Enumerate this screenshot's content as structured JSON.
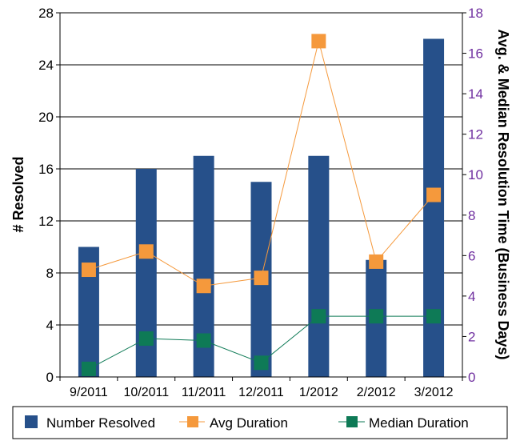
{
  "chart_data": {
    "type": "bar",
    "categories": [
      "9/2011",
      "10/2011",
      "11/2011",
      "12/2011",
      "1/2012",
      "2/2012",
      "3/2012"
    ],
    "y_left": {
      "label": "# Resolved",
      "range": [
        0,
        28
      ],
      "ticks": [
        0,
        4,
        8,
        12,
        16,
        20,
        24,
        28
      ]
    },
    "y_right": {
      "label": "Avg. & Median Resolution Time (Business Days)",
      "range": [
        0,
        18
      ],
      "ticks": [
        0,
        2,
        4,
        6,
        8,
        10,
        12,
        14,
        16,
        18
      ],
      "tick_color": "#7030a0"
    },
    "grid": true,
    "legend_position": "bottom",
    "series": [
      {
        "name": "Number Resolved",
        "type": "bar",
        "axis": "left",
        "color": "#26508a",
        "values": [
          10,
          16,
          17,
          15,
          17,
          9,
          26
        ]
      },
      {
        "name": "Avg Duration",
        "type": "line",
        "axis": "right",
        "color": "#f5993c",
        "values": [
          5.3,
          6.2,
          4.5,
          4.9,
          16.6,
          5.7,
          9.0
        ]
      },
      {
        "name": "Median Duration",
        "type": "line",
        "axis": "right",
        "color": "#0e7a56",
        "values": [
          0.4,
          1.9,
          1.8,
          0.7,
          3.0,
          3.0,
          3.0
        ]
      }
    ]
  }
}
